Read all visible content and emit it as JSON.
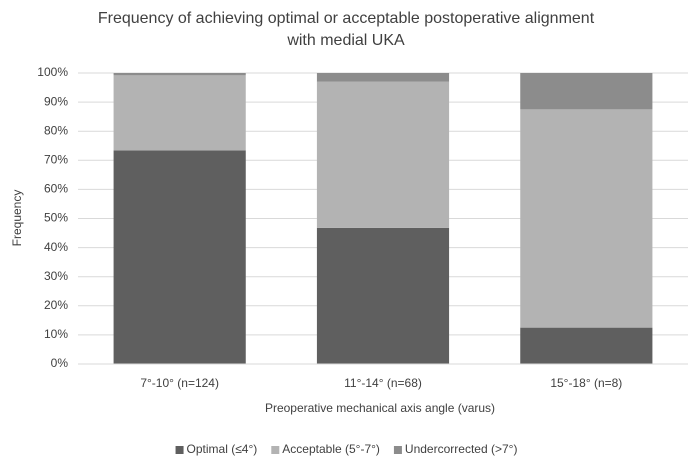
{
  "chart_data": {
    "type": "stacked_bar",
    "title": "Frequency of achieving optimal or acceptable postoperative alignment with medial UKA",
    "x_label": "Preoperative mechanical axis angle (varus)",
    "y_label": "Frequency",
    "categories": [
      "7°-10° (n=124)",
      "11°-14° (n=68)",
      "15°-18° (n=8)"
    ],
    "series": [
      {
        "name": "Optimal (≤4°)",
        "color": "#5f5f5f",
        "values": [
          73.4,
          46.8,
          12.5
        ]
      },
      {
        "name": "Acceptable (5°-7°)",
        "color": "#b3b3b3",
        "values": [
          25.8,
          50.2,
          75
        ]
      },
      {
        "name": "Undercorrected (>7°)",
        "color": "#8c8c8c",
        "values": [
          0.8,
          3,
          12.5
        ]
      }
    ],
    "ylim": [
      0,
      100
    ],
    "yticks": [
      {
        "value": 0,
        "label": "0%"
      },
      {
        "value": 10,
        "label": "10%"
      },
      {
        "value": 20,
        "label": "20%"
      },
      {
        "value": 30,
        "label": "30%"
      },
      {
        "value": 40,
        "label": "40%"
      },
      {
        "value": 50,
        "label": "50%"
      },
      {
        "value": 60,
        "label": "60%"
      },
      {
        "value": 70,
        "label": "70%"
      },
      {
        "value": 80,
        "label": "80%"
      },
      {
        "value": 90,
        "label": "90%"
      },
      {
        "value": 100,
        "label": "100%"
      }
    ],
    "grid": true,
    "legend": "bottom"
  }
}
